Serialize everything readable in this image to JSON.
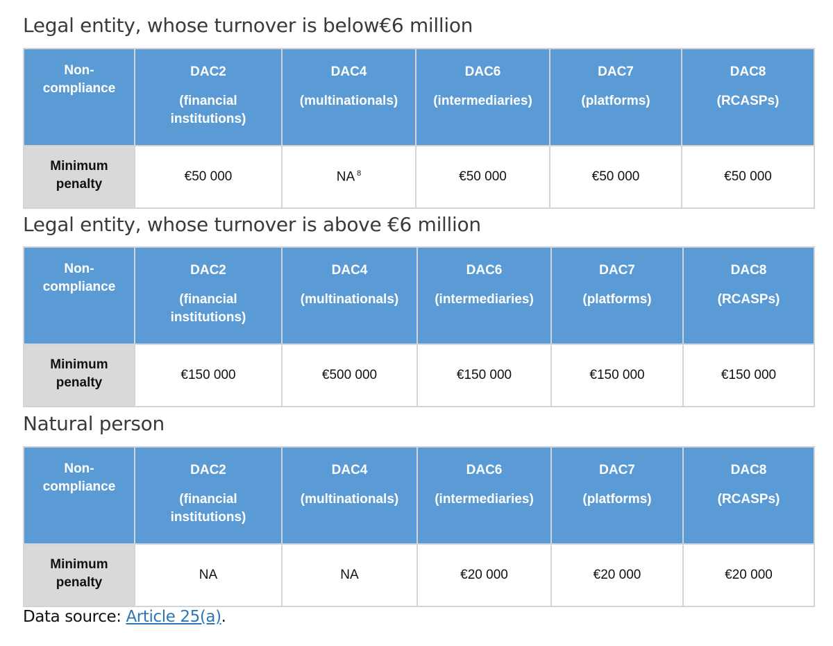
{
  "sections": [
    {
      "title": "Legal entity, whose turnover is below€6 million",
      "header": {
        "row_label": "Non-\ncompliance",
        "columns": [
          {
            "code": "DAC2",
            "sub": "(financial\ninstitutions)"
          },
          {
            "code": "DAC4",
            "sub": "(multinationals)"
          },
          {
            "code": "DAC6",
            "sub": "(intermediaries)"
          },
          {
            "code": "DAC7",
            "sub": "(platforms)"
          },
          {
            "code": "DAC8",
            "sub": "(RCASPs)"
          }
        ]
      },
      "row": {
        "label": "Minimum\npenalty",
        "values": [
          "€50 000",
          "NA",
          "€50 000",
          "€50 000",
          "€50 000"
        ],
        "footnote_on_dac4": "8"
      }
    },
    {
      "title": "Legal entity, whose turnover is above €6 million",
      "header": {
        "row_label": "Non-\ncompliance",
        "columns": [
          {
            "code": "DAC2",
            "sub": "(financial\ninstitutions)"
          },
          {
            "code": "DAC4",
            "sub": "(multinationals)"
          },
          {
            "code": "DAC6",
            "sub": "(intermediaries)"
          },
          {
            "code": "DAC7",
            "sub": "(platforms)"
          },
          {
            "code": "DAC8",
            "sub": "(RCASPs)"
          }
        ]
      },
      "row": {
        "label": "Minimum\npenalty",
        "values": [
          "€150 000",
          "€500 000",
          "€150 000",
          "€150 000",
          "€150 000"
        ]
      }
    },
    {
      "title": "Natural person",
      "header": {
        "row_label": "Non-\ncompliance",
        "columns": [
          {
            "code": "DAC2",
            "sub": "(financial\ninstitutions)"
          },
          {
            "code": "DAC4",
            "sub": "(multinationals)"
          },
          {
            "code": "DAC6",
            "sub": "(intermediaries)"
          },
          {
            "code": "DAC7",
            "sub": "(platforms)"
          },
          {
            "code": "DAC8",
            "sub": "(RCASPs)"
          }
        ]
      },
      "row": {
        "label": "Minimum\npenalty",
        "values": [
          "NA",
          "NA",
          "€20 000",
          "€20 000",
          "€20 000"
        ]
      }
    }
  ],
  "source": {
    "prefix": "Data source: ",
    "link_text": "Article 25(a)",
    "suffix": "."
  },
  "colors": {
    "header_bg": "#5b9bd5",
    "rowhead_bg": "#d9d9d9",
    "link": "#2e75b6"
  }
}
